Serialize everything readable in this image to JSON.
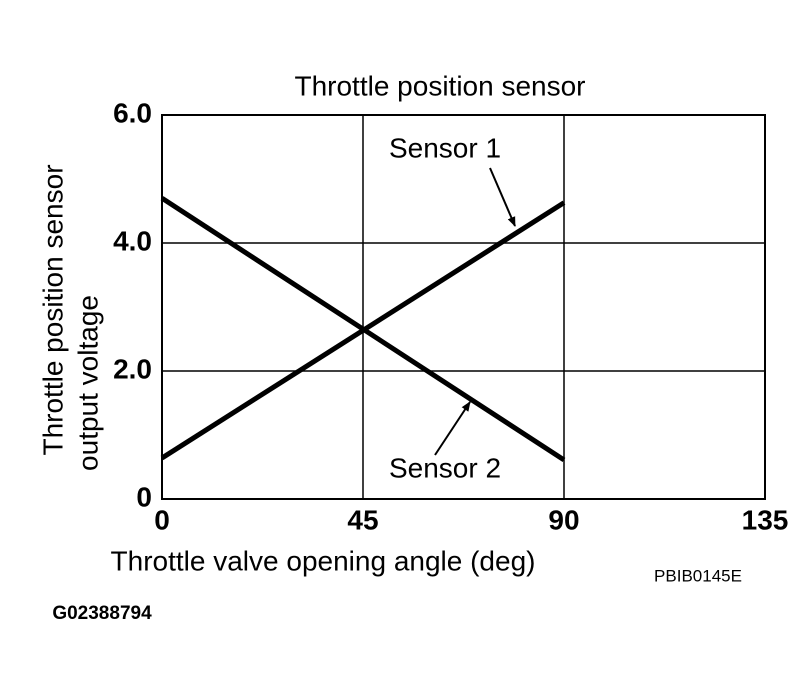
{
  "chart_data": {
    "type": "line",
    "title": "Throttle position sensor",
    "x_label": "Throttle valve opening angle (deg)",
    "y_label": [
      "Throttle position sensor",
      "output voltage"
    ],
    "x": [
      0,
      90
    ],
    "series": [
      {
        "name": "Sensor 1",
        "color": "#000000",
        "values": [
          0.64,
          4.63
        ]
      },
      {
        "name": "Sensor 2",
        "color": "#000000",
        "values": [
          4.7,
          0.61
        ]
      }
    ],
    "xlim": [
      0,
      135
    ],
    "xticks": [
      0,
      45,
      90,
      135
    ],
    "ylim": [
      0,
      6
    ],
    "yticks": [
      0,
      {
        "value": 2,
        "label": "2.0"
      },
      {
        "value": 4,
        "label": "4.0"
      },
      {
        "value": 6,
        "label": "6.0"
      }
    ],
    "grid": true,
    "annotations": [
      "PBIB0145E",
      "G02388794"
    ]
  }
}
